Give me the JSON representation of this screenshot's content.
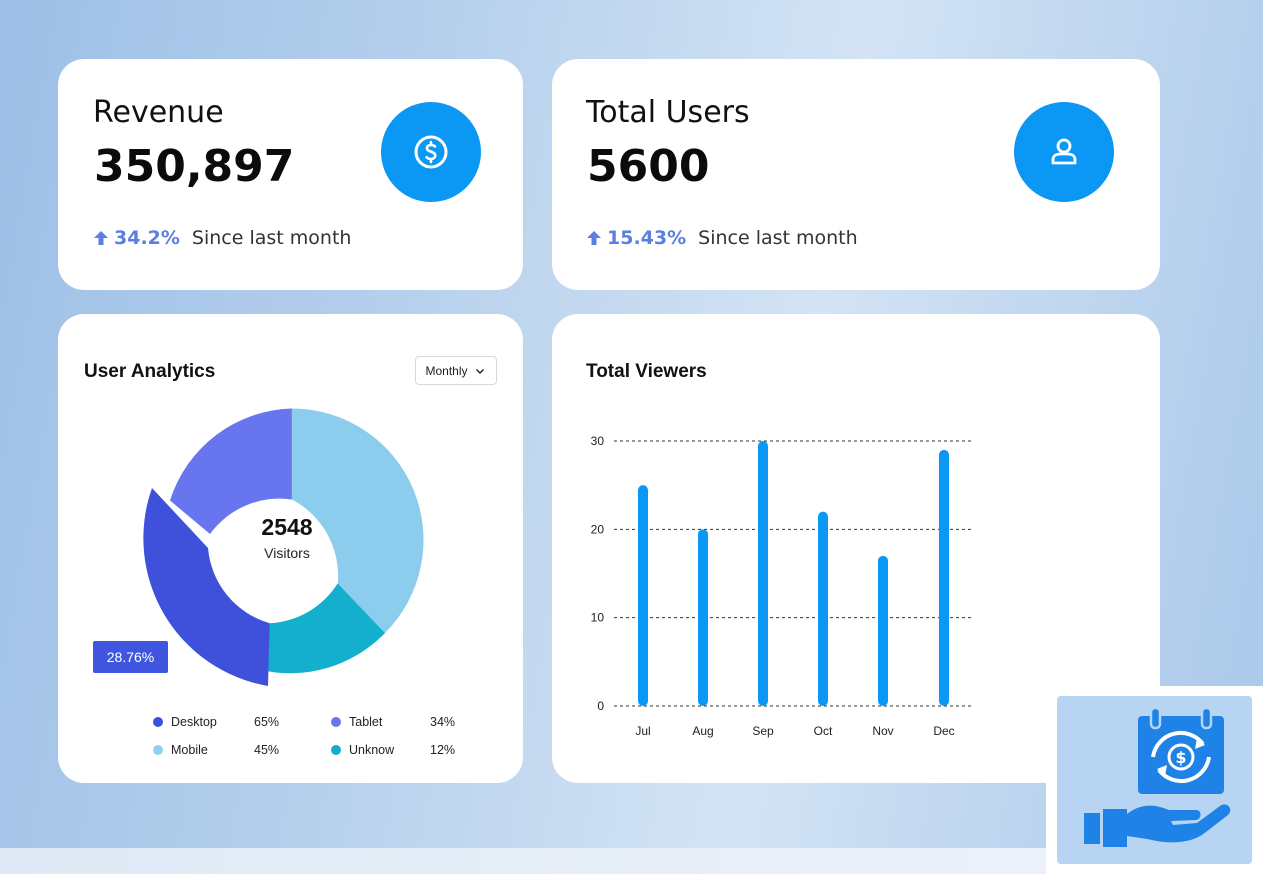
{
  "revenue": {
    "label": "Revenue",
    "value": "350,897",
    "change": "34.2%",
    "since": "Since last month",
    "icon": "dollar-icon"
  },
  "users": {
    "label": "Total Users",
    "value": "5600",
    "change": "15.43%",
    "since": "Since last month",
    "icon": "user-icon"
  },
  "analytics": {
    "title": "User Analytics",
    "period": "Monthly",
    "center_value": "2548",
    "center_label": "Visitors",
    "tooltip": "28.76%",
    "legend": [
      {
        "name": "Desktop",
        "pct": "65%",
        "color": "#3f51db"
      },
      {
        "name": "Tablet",
        "pct": "34%",
        "color": "#6776ee"
      },
      {
        "name": "Mobile",
        "pct": "45%",
        "color": "#8fd0ef"
      },
      {
        "name": "Unknow",
        "pct": "12%",
        "color": "#14aecd"
      }
    ]
  },
  "viewers": {
    "title": "Total Viewers"
  },
  "colors": {
    "accent": "#0b98f5",
    "trend": "#5b7ee0",
    "bar": "#0b98f5"
  },
  "chart_data": [
    {
      "type": "pie",
      "title": "User Analytics",
      "categories": [
        "Mobile",
        "Unknow",
        "Desktop",
        "Tablet"
      ],
      "values": [
        36,
        17,
        28.76,
        18.24
      ],
      "center_text": "2548 Visitors"
    },
    {
      "type": "bar",
      "title": "Total Viewers",
      "categories": [
        "Jul",
        "Aug",
        "Sep",
        "Oct",
        "Nov",
        "Dec"
      ],
      "values": [
        25,
        20,
        30,
        22,
        17,
        29
      ],
      "yticks": [
        0,
        10,
        20,
        30
      ],
      "ylim": [
        0,
        30
      ],
      "grid": true
    }
  ]
}
